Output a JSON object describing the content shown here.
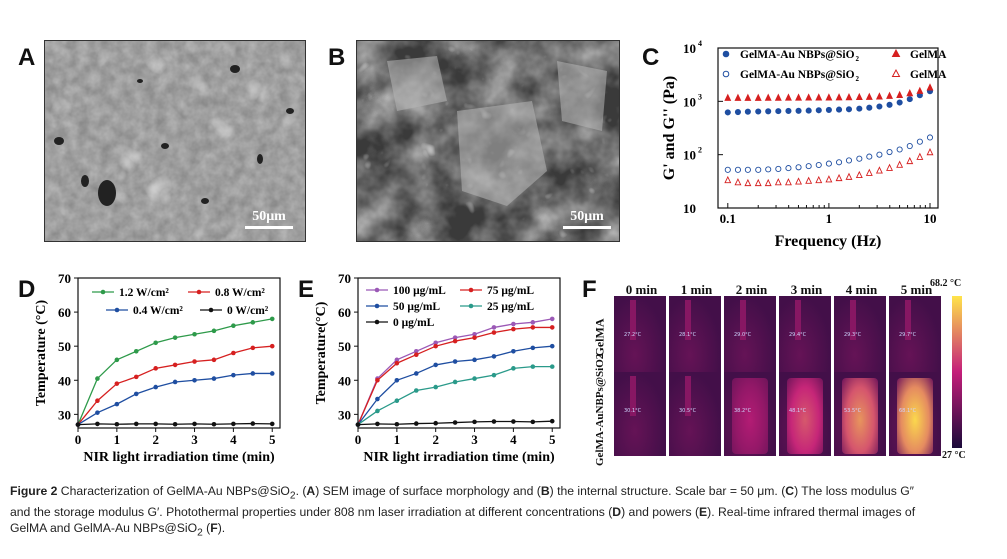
{
  "panels": {
    "A": {
      "letter": "A",
      "scale_label": "50μm"
    },
    "B": {
      "letter": "B",
      "scale_label": "50μm"
    },
    "C": {
      "letter": "C"
    },
    "D": {
      "letter": "D"
    },
    "E": {
      "letter": "E"
    },
    "F": {
      "letter": "F"
    }
  },
  "thermal": {
    "times": [
      "0 min",
      "1 min",
      "2 min",
      "3 min",
      "4 min",
      "5 min"
    ],
    "rows": [
      "GelMA",
      "GelMA-AuNBPs@SiO2"
    ],
    "colorbar_max": "68.2 °C",
    "colorbar_min": "27 °C",
    "gelma_levels": [
      0.02,
      0.03,
      0.04,
      0.05,
      0.06,
      0.07
    ],
    "au_levels": [
      0.02,
      0.1,
      0.45,
      0.65,
      0.8,
      0.97
    ],
    "gelma_temps": [
      "27.2°C",
      "28.1°C",
      "29.0°C",
      "29.4°C",
      "29.3°C",
      "29.7°C"
    ],
    "au_temps": [
      "30.1°C",
      "30.5°C",
      "38.2°C",
      "48.1°C",
      "53.5°C",
      "68.1°C"
    ],
    "colors": {
      "low": "#1a0a3a",
      "mid": "#c41e7a",
      "high": "#ffe44a"
    }
  },
  "caption": {
    "figure_label": "Figure 2",
    "p1": " Characterization of GelMA-Au NBPs@SiO",
    "p1b": ". (",
    "A": "A",
    "p2": ") SEM image of surface morphology and (",
    "B": "B",
    "p3": ") the internal structure. Scale bar = 50 μm. (",
    "C": "C",
    "p4": ") The loss modulus G″",
    "line2a": "and the storage modulus G′. Photothermal properties under 808 nm laser irradiation at different concentrations (",
    "D": "D",
    "line2b": ") and powers (",
    "E": "E",
    "line2c": "). Real-time infrared thermal images of",
    "line3a": "GelMA and GelMA-Au NBPs@SiO",
    "line3b": " (",
    "F": "F",
    "line3c": ").",
    "sub2": "2"
  },
  "chart_data": [
    {
      "type": "scatter",
      "panel": "C",
      "xlabel": "Frequency (Hz)",
      "ylabel": "G' and G'' (Pa)",
      "x_scale": "log",
      "y_scale": "log",
      "xlim": [
        0.08,
        12
      ],
      "ylim": [
        10,
        10000
      ],
      "x_ticks": [
        0.1,
        1,
        10
      ],
      "x_tick_labels": [
        "0.1",
        "1",
        "10"
      ],
      "y_tick_labels": [
        "10",
        "2",
        "3",
        "4"
      ],
      "legend_position": "top",
      "x": [
        0.1,
        0.126,
        0.158,
        0.2,
        0.251,
        0.316,
        0.398,
        0.501,
        0.631,
        0.794,
        1.0,
        1.26,
        1.58,
        2.0,
        2.51,
        3.16,
        3.98,
        5.01,
        6.31,
        7.94,
        10.0
      ],
      "series": [
        {
          "name": "GelMA-Au NBPs@SiO2",
          "label_sub": "2",
          "marker": "filled-circle",
          "color": "#1f4ea1",
          "values": [
            620,
            630,
            640,
            645,
            650,
            655,
            660,
            665,
            670,
            680,
            690,
            700,
            710,
            730,
            760,
            800,
            860,
            950,
            1100,
            1300,
            1550
          ]
        },
        {
          "name": "GelMA",
          "marker": "filled-triangle",
          "color": "#d62020",
          "values": [
            1150,
            1150,
            1150,
            1150,
            1155,
            1155,
            1160,
            1160,
            1165,
            1170,
            1170,
            1175,
            1180,
            1190,
            1200,
            1220,
            1250,
            1300,
            1400,
            1550,
            1800
          ]
        },
        {
          "name": "GelMA-Au NBPs@SiO2",
          "label_sub": "2",
          "marker": "open-circle",
          "color": "#1f4ea1",
          "values": [
            52,
            52,
            52,
            52,
            53,
            54,
            56,
            58,
            61,
            64,
            68,
            72,
            78,
            84,
            92,
            100,
            112,
            125,
            145,
            175,
            210
          ]
        },
        {
          "name": "GelMA",
          "marker": "open-triangle",
          "color": "#d62020",
          "values": [
            33,
            30,
            29,
            29,
            29,
            30,
            30,
            31,
            32,
            33,
            34,
            36,
            38,
            41,
            45,
            50,
            56,
            64,
            75,
            90,
            110
          ]
        }
      ]
    },
    {
      "type": "line",
      "panel": "D",
      "xlabel": "NIR light irradiation time (min)",
      "ylabel": "Temperature (°C)",
      "xlim": [
        0,
        5.2
      ],
      "ylim": [
        26,
        70
      ],
      "x_ticks": [
        0,
        1,
        2,
        3,
        4,
        5
      ],
      "y_ticks": [
        30,
        40,
        50,
        60,
        70
      ],
      "legend_position": "top",
      "x": [
        0,
        0.5,
        1,
        1.5,
        2,
        2.5,
        3,
        3.5,
        4,
        4.5,
        5
      ],
      "series": [
        {
          "name": "1.2 W/cm²",
          "color": "#2e9a4a",
          "values": [
            27,
            40.5,
            46,
            48.5,
            51,
            52.5,
            53.5,
            54.5,
            56,
            57,
            58
          ]
        },
        {
          "name": "0.8 W/cm²",
          "color": "#d62020",
          "values": [
            27,
            34,
            39,
            41,
            43.5,
            44.5,
            45.5,
            46,
            48,
            49.5,
            50
          ]
        },
        {
          "name": "0.4 W/cm²",
          "color": "#1f4ea1",
          "values": [
            27,
            30.5,
            33,
            36,
            38,
            39.5,
            40,
            40.5,
            41.5,
            42,
            42
          ]
        },
        {
          "name": "0 W/cm²",
          "color": "#111111",
          "values": [
            27,
            27.2,
            27.1,
            27.2,
            27.2,
            27.1,
            27.2,
            27.1,
            27.2,
            27.3,
            27.2
          ]
        }
      ]
    },
    {
      "type": "line",
      "panel": "E",
      "xlabel": "NIR light irradiation time (min)",
      "ylabel": "Temperature(°C)",
      "xlim": [
        0,
        5.2
      ],
      "ylim": [
        26,
        70
      ],
      "x_ticks": [
        0,
        1,
        2,
        3,
        4,
        5
      ],
      "y_ticks": [
        30,
        40,
        50,
        60,
        70
      ],
      "legend_position": "top",
      "x": [
        0,
        0.5,
        1,
        1.5,
        2,
        2.5,
        3,
        3.5,
        4,
        4.5,
        5
      ],
      "series": [
        {
          "name": "100 μg/mL",
          "color": "#9b59b6",
          "values": [
            27,
            40.5,
            46,
            48.5,
            51,
            52.5,
            53.5,
            55.5,
            56.5,
            57,
            58
          ]
        },
        {
          "name": "75 μg/mL",
          "color": "#d62020",
          "values": [
            27,
            40,
            45,
            47.5,
            50,
            51.5,
            52.5,
            54,
            55,
            55.5,
            55.5
          ]
        },
        {
          "name": "50 μg/mL",
          "color": "#1f4ea1",
          "values": [
            27,
            34.5,
            40,
            42,
            44.5,
            45.5,
            46,
            47,
            48.5,
            49.5,
            50
          ]
        },
        {
          "name": "25 μg/mL",
          "color": "#2a9a8a",
          "values": [
            27,
            31,
            34,
            37,
            38,
            39.5,
            40.5,
            41.5,
            43.5,
            44,
            44
          ]
        },
        {
          "name": "0 μg/mL",
          "color": "#111111",
          "values": [
            27,
            27.2,
            27.1,
            27.3,
            27.4,
            27.6,
            27.8,
            27.9,
            27.9,
            27.8,
            28
          ]
        }
      ]
    }
  ]
}
